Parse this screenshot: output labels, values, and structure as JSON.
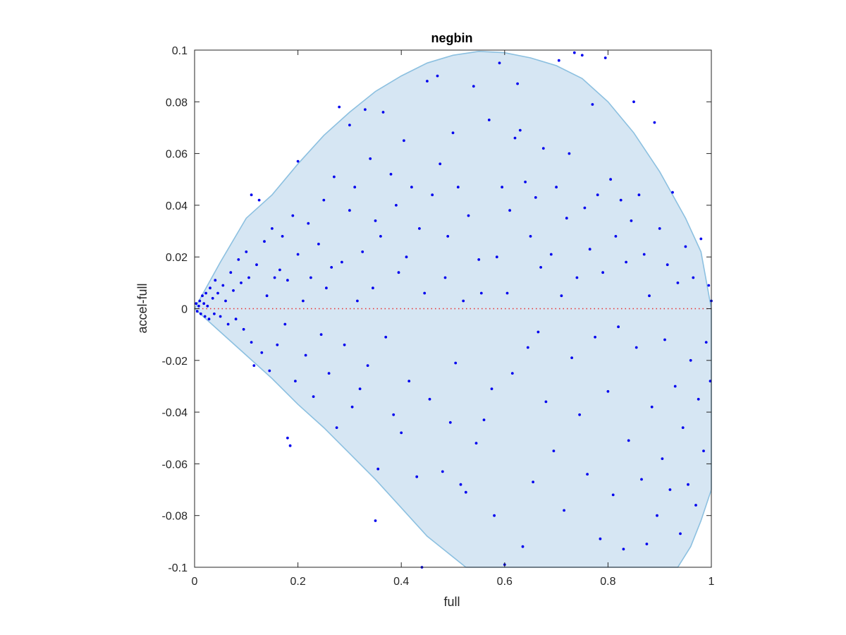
{
  "colors": {
    "region_fill": "#d6e6f3",
    "region_edge": "#8cc0e0",
    "points": "#0000ee",
    "zero_line": "#e83030",
    "axes": "#262626"
  },
  "chart_data": {
    "type": "scatter",
    "title": "negbin",
    "xlabel": "full",
    "ylabel": "accel-full",
    "xlim": [
      0,
      1
    ],
    "ylim": [
      -0.1,
      0.1
    ],
    "xticks": [
      0,
      0.2,
      0.4,
      0.6,
      0.8,
      1
    ],
    "xtick_labels": [
      "0",
      "0.2",
      "0.4",
      "0.6",
      "0.8",
      "1"
    ],
    "yticks": [
      -0.1,
      -0.08,
      -0.06,
      -0.04,
      -0.02,
      0,
      0.02,
      0.04,
      0.06,
      0.08,
      0.1
    ],
    "ytick_labels": [
      "-0.1",
      "-0.08",
      "-0.06",
      "-0.04",
      "-0.02",
      "0",
      "0.02",
      "0.04",
      "0.06",
      "0.08",
      "0.1"
    ],
    "grid": false,
    "reference_line": {
      "y": 0,
      "style": "dotted"
    },
    "region_upper": [
      [
        0,
        0
      ],
      [
        0.05,
        0.018
      ],
      [
        0.1,
        0.035
      ],
      [
        0.15,
        0.044
      ],
      [
        0.2,
        0.056
      ],
      [
        0.25,
        0.067
      ],
      [
        0.3,
        0.076
      ],
      [
        0.35,
        0.084
      ],
      [
        0.4,
        0.09
      ],
      [
        0.45,
        0.095
      ],
      [
        0.5,
        0.098
      ],
      [
        0.55,
        0.0995
      ],
      [
        0.6,
        0.099
      ],
      [
        0.65,
        0.097
      ],
      [
        0.7,
        0.094
      ],
      [
        0.75,
        0.089
      ],
      [
        0.8,
        0.08
      ],
      [
        0.85,
        0.068
      ],
      [
        0.9,
        0.053
      ],
      [
        0.95,
        0.035
      ],
      [
        0.98,
        0.022
      ],
      [
        1.0,
        0.0
      ]
    ],
    "region_lower": [
      [
        1.0,
        -0.07
      ],
      [
        0.98,
        -0.082
      ],
      [
        0.96,
        -0.092
      ],
      [
        0.935,
        -0.1
      ],
      [
        0.525,
        -0.1
      ],
      [
        0.45,
        -0.088
      ],
      [
        0.4,
        -0.077
      ],
      [
        0.35,
        -0.066
      ],
      [
        0.3,
        -0.056
      ],
      [
        0.25,
        -0.046
      ],
      [
        0.2,
        -0.037
      ],
      [
        0.15,
        -0.027
      ],
      [
        0.1,
        -0.018
      ],
      [
        0.05,
        -0.009
      ],
      [
        0,
        0
      ]
    ],
    "points": [
      [
        0.003,
        0.002
      ],
      [
        0.005,
        -0.001
      ],
      [
        0.008,
        0.001
      ],
      [
        0.01,
        0.003
      ],
      [
        0.012,
        -0.002
      ],
      [
        0.015,
        0.005
      ],
      [
        0.018,
        0.002
      ],
      [
        0.02,
        -0.003
      ],
      [
        0.022,
        0.006
      ],
      [
        0.025,
        0.001
      ],
      [
        0.028,
        -0.004
      ],
      [
        0.03,
        0.008
      ],
      [
        0.035,
        0.004
      ],
      [
        0.038,
        -0.002
      ],
      [
        0.04,
        0.011
      ],
      [
        0.045,
        0.006
      ],
      [
        0.05,
        -0.003
      ],
      [
        0.055,
        0.009
      ],
      [
        0.06,
        0.003
      ],
      [
        0.065,
        -0.006
      ],
      [
        0.07,
        0.014
      ],
      [
        0.075,
        0.007
      ],
      [
        0.08,
        -0.004
      ],
      [
        0.085,
        0.019
      ],
      [
        0.09,
        0.01
      ],
      [
        0.095,
        -0.008
      ],
      [
        0.1,
        0.022
      ],
      [
        0.105,
        0.012
      ],
      [
        0.11,
        -0.013
      ],
      [
        0.11,
        0.044
      ],
      [
        0.115,
        -0.022
      ],
      [
        0.12,
        0.017
      ],
      [
        0.125,
        0.042
      ],
      [
        0.13,
        -0.017
      ],
      [
        0.135,
        0.026
      ],
      [
        0.14,
        0.005
      ],
      [
        0.145,
        -0.024
      ],
      [
        0.15,
        0.031
      ],
      [
        0.155,
        0.012
      ],
      [
        0.16,
        -0.014
      ],
      [
        0.165,
        0.015
      ],
      [
        0.17,
        0.028
      ],
      [
        0.175,
        -0.006
      ],
      [
        0.18,
        0.011
      ],
      [
        0.18,
        -0.05
      ],
      [
        0.185,
        -0.053
      ],
      [
        0.19,
        0.036
      ],
      [
        0.195,
        -0.028
      ],
      [
        0.2,
        0.021
      ],
      [
        0.2,
        0.057
      ],
      [
        0.21,
        0.003
      ],
      [
        0.215,
        -0.018
      ],
      [
        0.22,
        0.033
      ],
      [
        0.225,
        0.012
      ],
      [
        0.23,
        -0.034
      ],
      [
        0.24,
        0.025
      ],
      [
        0.245,
        -0.01
      ],
      [
        0.25,
        0.042
      ],
      [
        0.255,
        0.008
      ],
      [
        0.26,
        -0.025
      ],
      [
        0.265,
        0.016
      ],
      [
        0.27,
        0.051
      ],
      [
        0.275,
        -0.046
      ],
      [
        0.28,
        0.078
      ],
      [
        0.285,
        0.018
      ],
      [
        0.29,
        -0.014
      ],
      [
        0.3,
        0.038
      ],
      [
        0.3,
        0.071
      ],
      [
        0.305,
        -0.038
      ],
      [
        0.31,
        0.047
      ],
      [
        0.315,
        0.003
      ],
      [
        0.32,
        -0.031
      ],
      [
        0.325,
        0.022
      ],
      [
        0.33,
        0.077
      ],
      [
        0.335,
        -0.022
      ],
      [
        0.34,
        0.058
      ],
      [
        0.345,
        0.008
      ],
      [
        0.35,
        -0.082
      ],
      [
        0.35,
        0.034
      ],
      [
        0.355,
        -0.062
      ],
      [
        0.36,
        0.028
      ],
      [
        0.365,
        0.076
      ],
      [
        0.37,
        -0.011
      ],
      [
        0.38,
        0.052
      ],
      [
        0.385,
        -0.041
      ],
      [
        0.39,
        0.04
      ],
      [
        0.395,
        0.014
      ],
      [
        0.4,
        -0.048
      ],
      [
        0.405,
        0.065
      ],
      [
        0.41,
        0.02
      ],
      [
        0.415,
        -0.028
      ],
      [
        0.42,
        0.047
      ],
      [
        0.43,
        -0.065
      ],
      [
        0.435,
        0.031
      ],
      [
        0.44,
        -0.1
      ],
      [
        0.445,
        0.006
      ],
      [
        0.45,
        0.088
      ],
      [
        0.455,
        -0.035
      ],
      [
        0.46,
        0.044
      ],
      [
        0.47,
        0.09
      ],
      [
        0.475,
        0.056
      ],
      [
        0.48,
        -0.063
      ],
      [
        0.485,
        0.012
      ],
      [
        0.49,
        0.028
      ],
      [
        0.495,
        -0.044
      ],
      [
        0.5,
        0.068
      ],
      [
        0.505,
        -0.021
      ],
      [
        0.51,
        0.047
      ],
      [
        0.515,
        -0.068
      ],
      [
        0.52,
        0.003
      ],
      [
        0.525,
        -0.071
      ],
      [
        0.53,
        0.036
      ],
      [
        0.54,
        0.086
      ],
      [
        0.545,
        -0.052
      ],
      [
        0.55,
        0.019
      ],
      [
        0.555,
        0.006
      ],
      [
        0.56,
        -0.043
      ],
      [
        0.57,
        0.073
      ],
      [
        0.575,
        -0.031
      ],
      [
        0.58,
        -0.08
      ],
      [
        0.585,
        0.02
      ],
      [
        0.59,
        0.095
      ],
      [
        0.595,
        0.047
      ],
      [
        0.6,
        -0.099
      ],
      [
        0.605,
        0.006
      ],
      [
        0.61,
        0.038
      ],
      [
        0.615,
        -0.025
      ],
      [
        0.62,
        0.066
      ],
      [
        0.625,
        0.087
      ],
      [
        0.63,
        0.069
      ],
      [
        0.635,
        -0.092
      ],
      [
        0.64,
        0.049
      ],
      [
        0.645,
        -0.015
      ],
      [
        0.65,
        0.028
      ],
      [
        0.655,
        -0.067
      ],
      [
        0.66,
        0.043
      ],
      [
        0.665,
        -0.009
      ],
      [
        0.67,
        0.016
      ],
      [
        0.675,
        0.062
      ],
      [
        0.68,
        -0.036
      ],
      [
        0.69,
        0.021
      ],
      [
        0.695,
        -0.055
      ],
      [
        0.7,
        0.047
      ],
      [
        0.705,
        0.096
      ],
      [
        0.71,
        0.005
      ],
      [
        0.715,
        -0.078
      ],
      [
        0.72,
        0.035
      ],
      [
        0.725,
        0.06
      ],
      [
        0.73,
        -0.019
      ],
      [
        0.735,
        0.099
      ],
      [
        0.74,
        0.012
      ],
      [
        0.745,
        -0.041
      ],
      [
        0.75,
        0.098
      ],
      [
        0.755,
        0.039
      ],
      [
        0.76,
        -0.064
      ],
      [
        0.765,
        0.023
      ],
      [
        0.77,
        0.079
      ],
      [
        0.775,
        -0.011
      ],
      [
        0.78,
        0.044
      ],
      [
        0.785,
        -0.089
      ],
      [
        0.79,
        0.014
      ],
      [
        0.795,
        0.097
      ],
      [
        0.8,
        -0.032
      ],
      [
        0.805,
        0.05
      ],
      [
        0.81,
        -0.072
      ],
      [
        0.815,
        0.028
      ],
      [
        0.82,
        -0.007
      ],
      [
        0.825,
        0.042
      ],
      [
        0.83,
        -0.093
      ],
      [
        0.835,
        0.018
      ],
      [
        0.84,
        -0.051
      ],
      [
        0.845,
        0.034
      ],
      [
        0.85,
        0.08
      ],
      [
        0.855,
        -0.015
      ],
      [
        0.86,
        0.044
      ],
      [
        0.865,
        -0.066
      ],
      [
        0.87,
        0.021
      ],
      [
        0.875,
        -0.091
      ],
      [
        0.88,
        0.005
      ],
      [
        0.885,
        -0.038
      ],
      [
        0.89,
        0.072
      ],
      [
        0.895,
        -0.08
      ],
      [
        0.9,
        0.031
      ],
      [
        0.905,
        -0.058
      ],
      [
        0.91,
        -0.012
      ],
      [
        0.915,
        0.017
      ],
      [
        0.92,
        -0.07
      ],
      [
        0.925,
        0.045
      ],
      [
        0.93,
        -0.03
      ],
      [
        0.935,
        0.01
      ],
      [
        0.94,
        -0.087
      ],
      [
        0.945,
        -0.046
      ],
      [
        0.95,
        0.024
      ],
      [
        0.955,
        -0.068
      ],
      [
        0.96,
        -0.02
      ],
      [
        0.965,
        0.012
      ],
      [
        0.97,
        -0.076
      ],
      [
        0.975,
        -0.035
      ],
      [
        0.98,
        0.027
      ],
      [
        0.985,
        -0.055
      ],
      [
        0.99,
        -0.013
      ],
      [
        0.995,
        0.009
      ],
      [
        0.998,
        -0.028
      ],
      [
        1.0,
        0.003
      ]
    ]
  }
}
